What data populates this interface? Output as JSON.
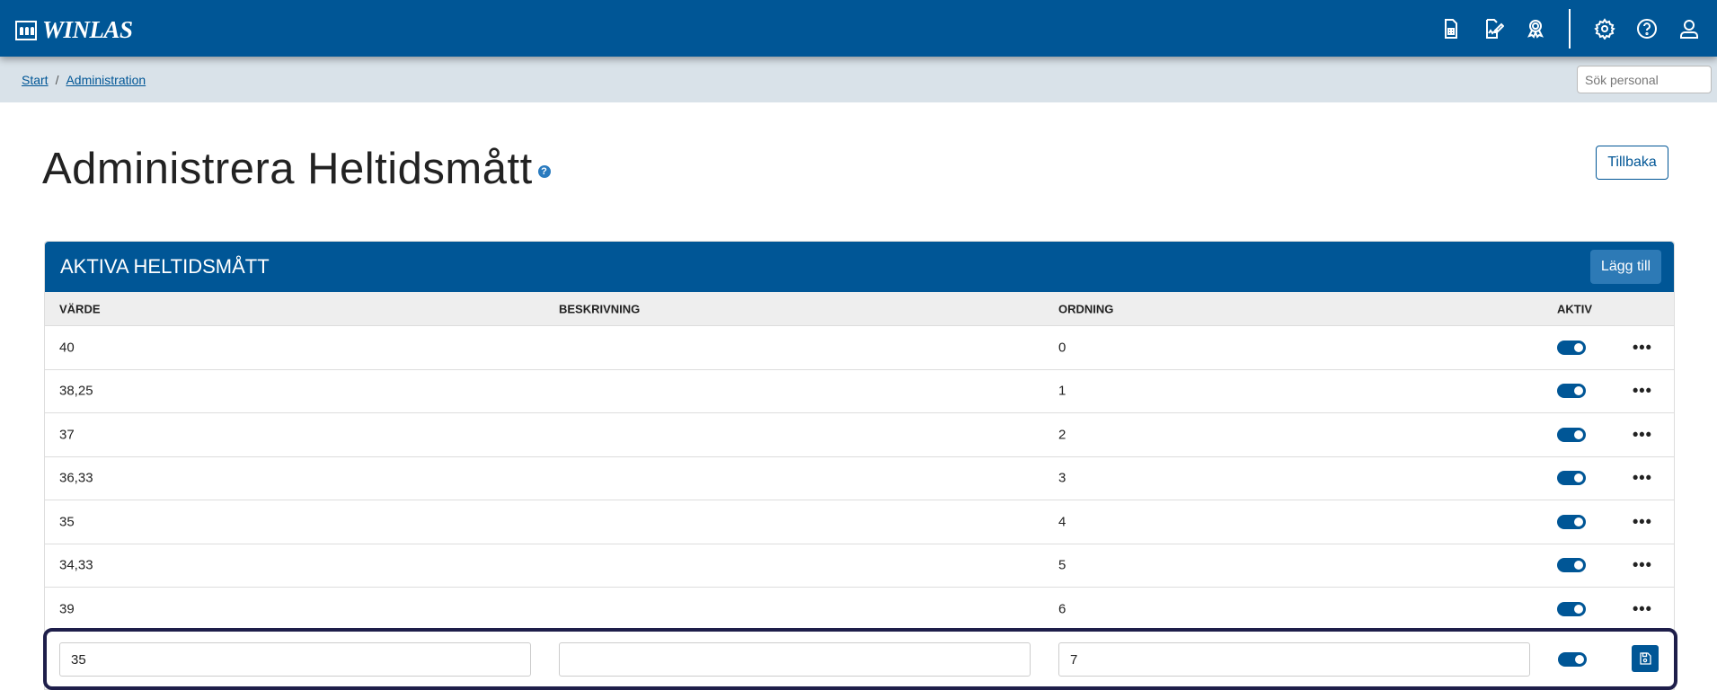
{
  "app": {
    "logo_text": "WINLAS"
  },
  "topbar": {
    "icons": [
      "spreadsheet-doc-icon",
      "signature-doc-icon",
      "award-icon",
      "gear-icon",
      "help-icon",
      "user-icon"
    ]
  },
  "breadcrumb": {
    "items": [
      "Start",
      "Administration"
    ],
    "separator": "/"
  },
  "search": {
    "placeholder": "Sök personal"
  },
  "page": {
    "title": "Administrera Heltidsmått",
    "help": "?",
    "back_label": "Tillbaka"
  },
  "panel": {
    "title": "AKTIVA HELTIDSMÅTT",
    "add_label": "Lägg till",
    "columns": [
      "VÄRDE",
      "BESKRIVNING",
      "ORDNING",
      "AKTIV"
    ],
    "rows": [
      {
        "value": "40",
        "description": "",
        "order": "0",
        "active": true
      },
      {
        "value": "38,25",
        "description": "",
        "order": "1",
        "active": true
      },
      {
        "value": "37",
        "description": "",
        "order": "2",
        "active": true
      },
      {
        "value": "36,33",
        "description": "",
        "order": "3",
        "active": true
      },
      {
        "value": "35",
        "description": "",
        "order": "4",
        "active": true
      },
      {
        "value": "34,33",
        "description": "",
        "order": "5",
        "active": true
      },
      {
        "value": "39",
        "description": "",
        "order": "6",
        "active": true
      }
    ],
    "more_label": "•••",
    "edit_row": {
      "value": "35",
      "description": "",
      "order": "7",
      "active": true
    }
  },
  "colors": {
    "primary": "#005696",
    "edit_border": "#1e1e4a"
  }
}
